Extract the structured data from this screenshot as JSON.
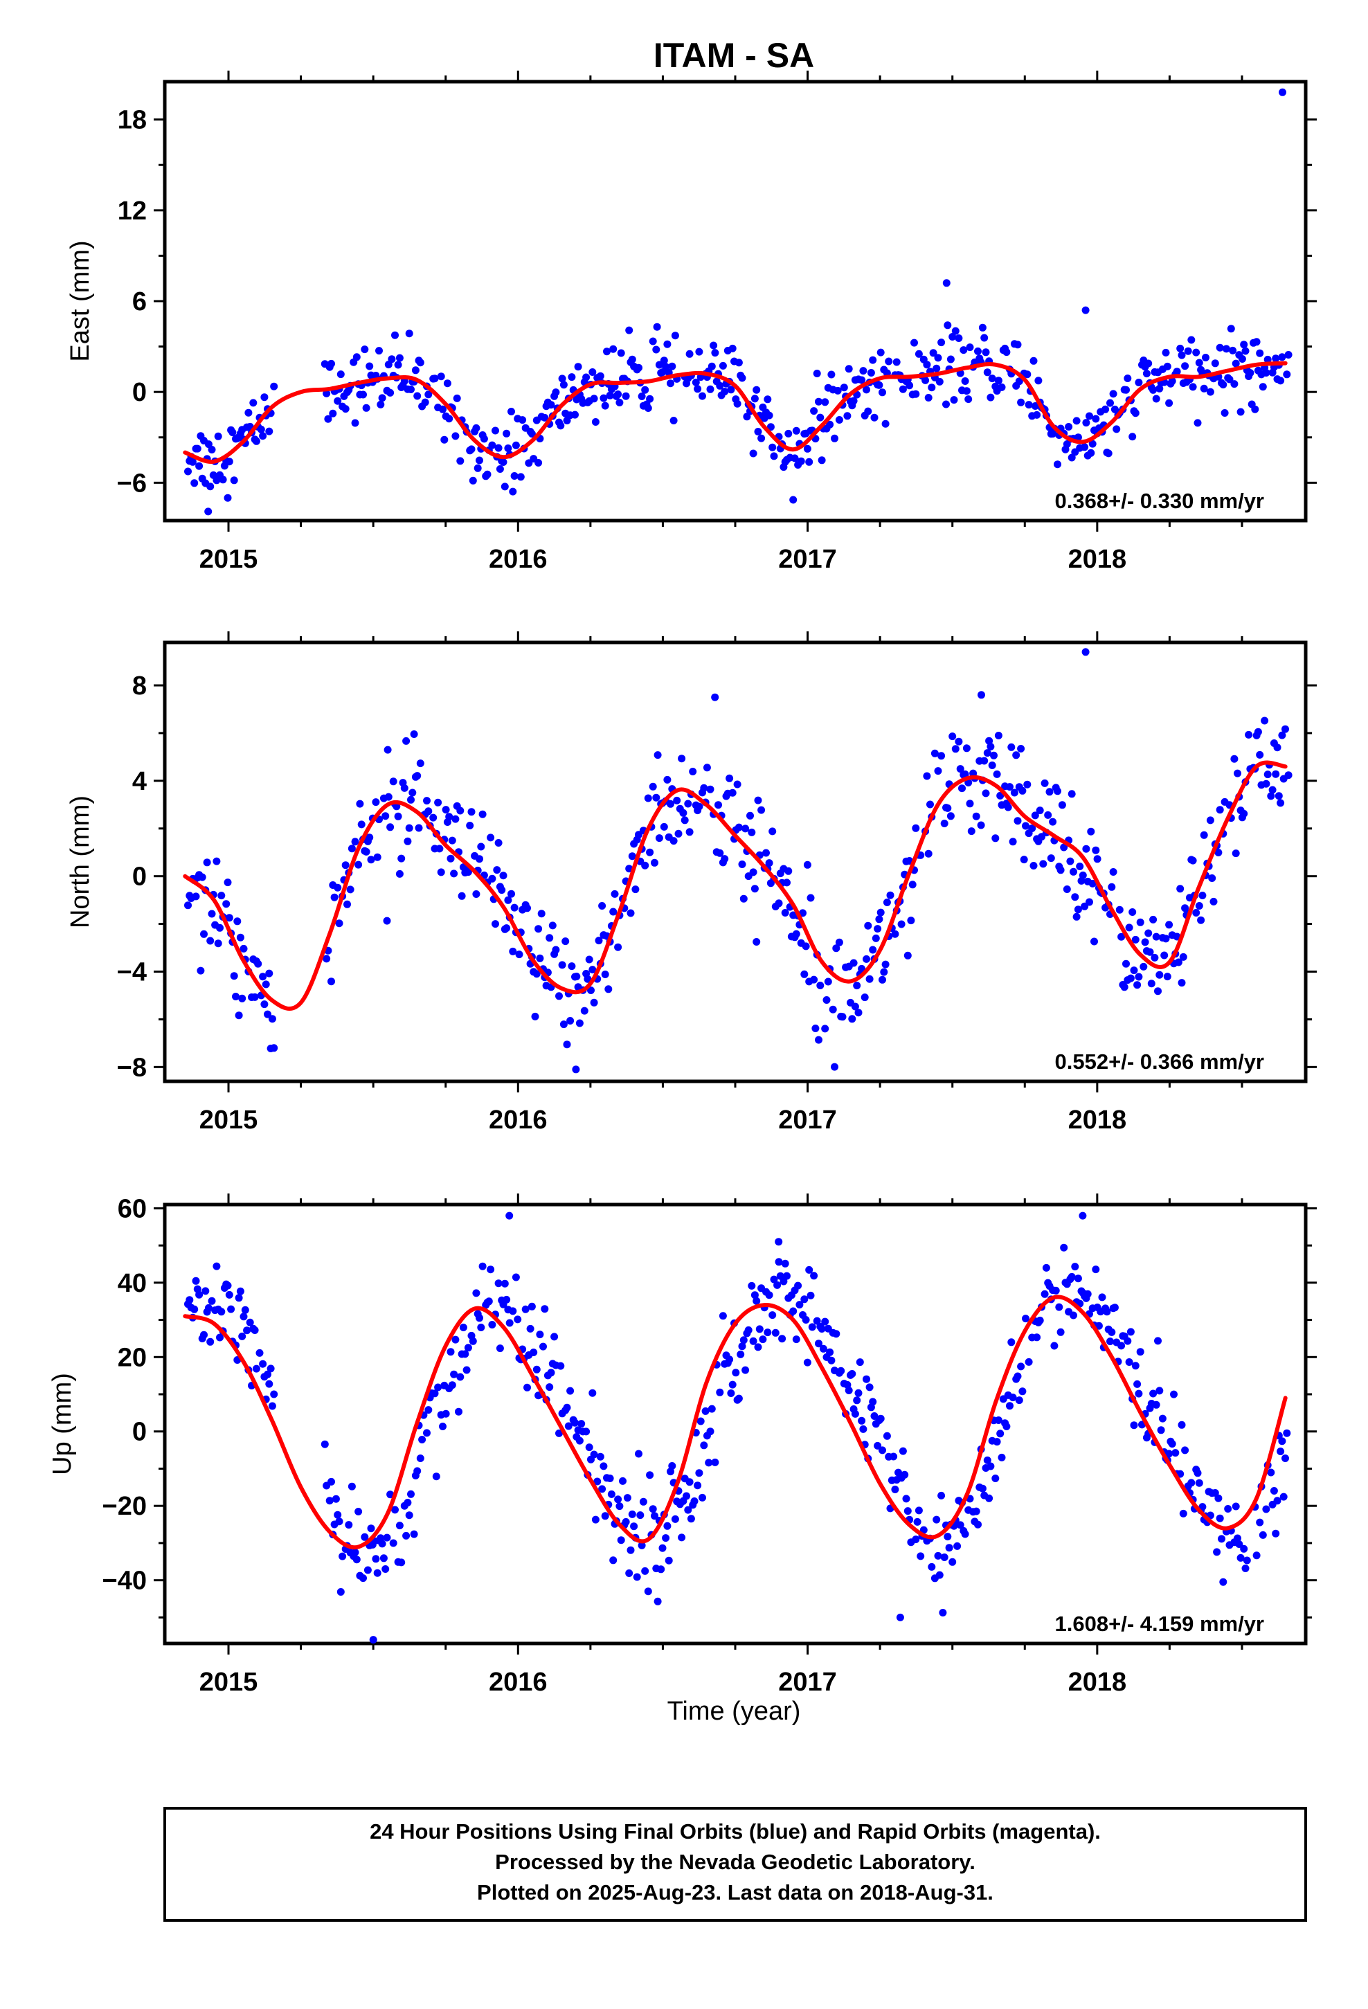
{
  "title": "ITAM - SA",
  "xlabel": "Time (year)",
  "footer": {
    "line1": "24 Hour Positions Using Final Orbits (blue) and Rapid Orbits (magenta).",
    "line2": "Processed by the Nevada Geodetic Laboratory.",
    "line3": "Plotted on 2025-Aug-23. Last data on 2018-Aug-31."
  },
  "colors": {
    "data": "#0000ff",
    "fit": "#ff0000",
    "frame": "#000000"
  },
  "chart_data": [
    {
      "type": "scatter",
      "ylabel": "East (mm)",
      "rate": "0.368+/- 0.330 mm/yr",
      "xlim": [
        2014.78,
        2018.72
      ],
      "ylim": [
        -8.5,
        20.5
      ],
      "yticks": [
        -6,
        0,
        6,
        12,
        18
      ],
      "xticks": [
        2015,
        2016,
        2017,
        2018
      ],
      "grid": false,
      "series": [
        {
          "kind": "fit-line",
          "x": [
            2014.85,
            2014.95,
            2015.05,
            2015.15,
            2015.25,
            2015.35,
            2015.45,
            2015.55,
            2015.65,
            2015.75,
            2015.85,
            2015.95,
            2016.05,
            2016.15,
            2016.25,
            2016.35,
            2016.45,
            2016.55,
            2016.65,
            2016.75,
            2016.85,
            2016.95,
            2017.05,
            2017.15,
            2017.25,
            2017.35,
            2017.45,
            2017.55,
            2017.65,
            2017.75,
            2017.85,
            2017.95,
            2018.05,
            2018.15,
            2018.25,
            2018.35,
            2018.45,
            2018.55,
            2018.65
          ],
          "y": [
            -4.0,
            -4.6,
            -3.3,
            -1.0,
            0.0,
            0.2,
            0.6,
            0.9,
            0.8,
            -0.8,
            -3.2,
            -4.3,
            -3.2,
            -0.9,
            0.5,
            0.6,
            0.7,
            1.1,
            1.2,
            0.4,
            -2.3,
            -3.8,
            -2.2,
            -0.1,
            0.9,
            1.0,
            1.2,
            1.6,
            1.8,
            0.8,
            -2.3,
            -3.3,
            -2.0,
            0.2,
            1.0,
            1.0,
            1.4,
            1.8,
            1.9
          ]
        },
        {
          "kind": "outliers",
          "x": [
            2018.64,
            2017.48,
            2017.96,
            2016.48,
            2014.93
          ],
          "y": [
            19.8,
            7.2,
            5.4,
            4.3,
            -7.9
          ]
        }
      ]
    },
    {
      "type": "scatter",
      "ylabel": "North (mm)",
      "rate": "0.552+/- 0.366 mm/yr",
      "xlim": [
        2014.78,
        2018.72
      ],
      "ylim": [
        -8.6,
        9.8
      ],
      "yticks": [
        -8,
        -4,
        0,
        4,
        8
      ],
      "xticks": [
        2015,
        2016,
        2017,
        2018
      ],
      "grid": false,
      "series": [
        {
          "kind": "fit-line",
          "x": [
            2014.85,
            2014.95,
            2015.05,
            2015.15,
            2015.25,
            2015.35,
            2015.45,
            2015.55,
            2015.65,
            2015.75,
            2015.85,
            2015.95,
            2016.05,
            2016.15,
            2016.25,
            2016.35,
            2016.45,
            2016.55,
            2016.65,
            2016.75,
            2016.85,
            2016.95,
            2017.05,
            2017.15,
            2017.25,
            2017.35,
            2017.45,
            2017.55,
            2017.65,
            2017.75,
            2017.85,
            2017.95,
            2018.05,
            2018.15,
            2018.25,
            2018.35,
            2018.45,
            2018.55,
            2018.65
          ],
          "y": [
            0.0,
            -1.0,
            -3.5,
            -5.2,
            -5.3,
            -2.4,
            1.2,
            3.0,
            2.7,
            1.3,
            0.2,
            -1.3,
            -3.5,
            -4.7,
            -4.5,
            -1.5,
            2.0,
            3.6,
            3.0,
            1.7,
            0.4,
            -1.2,
            -3.6,
            -4.4,
            -3.1,
            0.1,
            3.0,
            4.1,
            3.8,
            2.5,
            1.7,
            0.8,
            -1.4,
            -3.3,
            -3.6,
            -0.5,
            2.4,
            4.6,
            4.6
          ]
        },
        {
          "kind": "outliers",
          "x": [
            2017.96,
            2016.68,
            2017.6,
            2015.55,
            2016.2
          ],
          "y": [
            9.4,
            7.5,
            7.6,
            5.3,
            -8.1
          ]
        }
      ]
    },
    {
      "type": "scatter",
      "ylabel": "Up (mm)",
      "rate": "1.608+/- 4.159 mm/yr",
      "xlim": [
        2014.78,
        2018.72
      ],
      "ylim": [
        -57,
        61
      ],
      "yticks": [
        -40,
        -20,
        0,
        20,
        40,
        60
      ],
      "xticks": [
        2015,
        2016,
        2017,
        2018
      ],
      "grid": false,
      "series": [
        {
          "kind": "fit-line",
          "x": [
            2014.85,
            2014.95,
            2015.05,
            2015.15,
            2015.25,
            2015.35,
            2015.45,
            2015.55,
            2015.65,
            2015.75,
            2015.85,
            2015.95,
            2016.05,
            2016.15,
            2016.25,
            2016.35,
            2016.45,
            2016.55,
            2016.65,
            2016.75,
            2016.85,
            2016.95,
            2017.05,
            2017.15,
            2017.25,
            2017.35,
            2017.45,
            2017.55,
            2017.65,
            2017.75,
            2017.85,
            2017.95,
            2018.05,
            2018.15,
            2018.25,
            2018.35,
            2018.45,
            2018.55,
            2018.65
          ],
          "y": [
            31,
            29,
            19,
            3,
            -15,
            -27,
            -31,
            -22,
            2,
            23,
            33,
            28,
            15,
            1,
            -13,
            -25,
            -29,
            -14,
            13,
            29,
            34,
            30,
            17,
            2,
            -14,
            -25,
            -28,
            -17,
            8,
            27,
            36,
            32,
            20,
            5,
            -9,
            -21,
            -26,
            -18,
            9
          ]
        },
        {
          "kind": "outliers",
          "x": [
            2015.97,
            2017.95,
            2015.5,
            2017.32,
            2016.9
          ],
          "y": [
            58,
            58,
            -56,
            -50,
            51
          ]
        }
      ]
    }
  ]
}
